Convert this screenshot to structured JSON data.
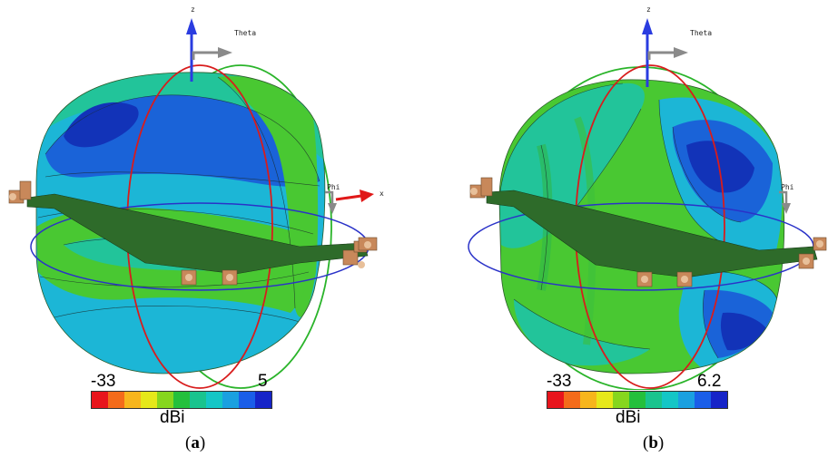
{
  "panels": [
    {
      "id": "a",
      "axis_z": "z",
      "axis_theta": "Theta",
      "axis_phi": "Phi",
      "axis_x": "x",
      "scale_min": "-33",
      "scale_max": "5",
      "unit": "dBi",
      "caption_open": "(",
      "caption_letter": "a",
      "caption_close": ")"
    },
    {
      "id": "b",
      "axis_z": "z",
      "axis_theta": "Theta",
      "axis_phi": "Phi",
      "scale_min": "-33",
      "scale_max": "6.2",
      "unit": "dBi",
      "caption_open": "(",
      "caption_letter": "b",
      "caption_close": ")"
    }
  ],
  "colormap": [
    "#e8141c",
    "#f46b1a",
    "#f7b51c",
    "#e6e81a",
    "#86d61e",
    "#24c03c",
    "#19c48e",
    "#14c6c6",
    "#1aa0e0",
    "#1a5ee8",
    "#1624c8"
  ],
  "colors": {
    "surface_green": "#49c832",
    "surface_teal": "#22c49a",
    "surface_cyan": "#1cb6d6",
    "surface_blue": "#1a63d8",
    "surface_dark_blue": "#1233b8",
    "phi_ring": "#2a32c8",
    "theta_ring_red": "#d81c1c",
    "theta_ring_green": "#2ab42a",
    "z_arrow": "#2a3ce0",
    "x_arrow": "#e01818",
    "direction_arrow": "#8a8a8a",
    "board": "#2e6b2a",
    "connector": "#c8885a"
  }
}
